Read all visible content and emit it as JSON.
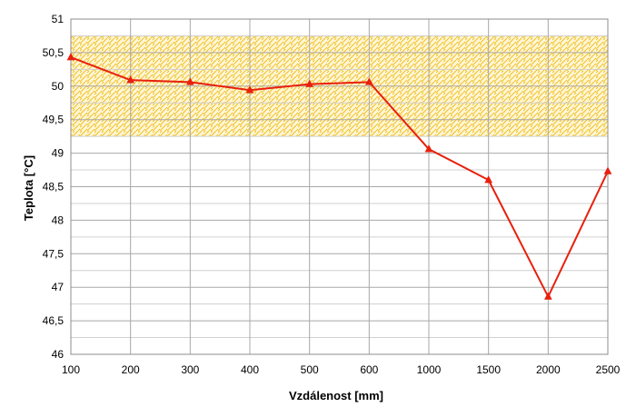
{
  "chart_data": {
    "type": "line",
    "title": "",
    "xlabel": "Vzdálenost  [mm]",
    "ylabel": "Teplota [°C]",
    "categories": [
      "100",
      "200",
      "300",
      "400",
      "500",
      "600",
      "1000",
      "1500",
      "2000",
      "2500"
    ],
    "ylim": [
      46,
      51
    ],
    "y_major_step": 0.5,
    "y_minor_step": 0.25,
    "y_ticks": [
      "46",
      "46,5",
      "47",
      "47,5",
      "48",
      "48,5",
      "49",
      "49,5",
      "50",
      "50,5",
      "51"
    ],
    "grid": true,
    "band": {
      "from": 49.25,
      "to": 50.75,
      "color": "#f2c12e",
      "pattern": "hatched"
    },
    "series": [
      {
        "values": [
          50.43,
          50.09,
          50.06,
          49.94,
          50.03,
          50.06,
          49.06,
          48.6,
          46.86,
          48.73
        ],
        "color": "#e8200c",
        "marker": "triangle"
      }
    ],
    "legend": "none"
  }
}
